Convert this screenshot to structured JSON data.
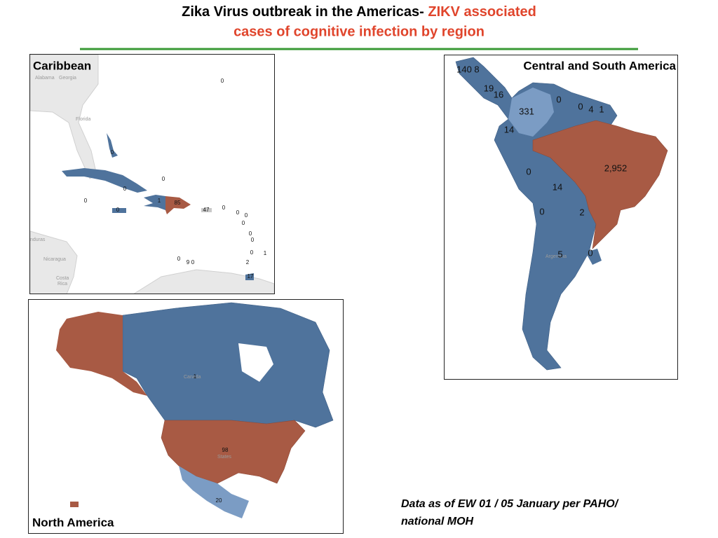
{
  "title": {
    "black": "Zika Virus outbreak in the Americas- ",
    "red_line1": "ZIKV associated",
    "red_line2": "cases of cognitive infection by region"
  },
  "panels": [
    {
      "name": "Caribbean",
      "basemap_labels": [
        "Alabama",
        "Georgia",
        "Florida",
        "nduras",
        "Nicaragua",
        "Costa",
        "Rica"
      ],
      "case_labels": [
        "0",
        "0",
        "0",
        "0",
        "0",
        "1",
        "85",
        "47",
        "0",
        "0",
        "0",
        "0",
        "0",
        "0",
        "0",
        "0",
        "1",
        "0",
        "9",
        "0",
        "2",
        "17"
      ]
    },
    {
      "name": "Central and South America",
      "basemap_labels": [
        "Argentina"
      ],
      "case_labels": [
        "140",
        "8",
        "19",
        "16",
        "331",
        "0",
        "0",
        "4",
        "1",
        "14",
        "2,952",
        "0",
        "14",
        "0",
        "2",
        "0",
        "5"
      ]
    },
    {
      "name": "North America",
      "basemap_labels": [
        "Canada",
        "States"
      ],
      "case_labels": [
        "1",
        "98",
        "20"
      ]
    }
  ],
  "footnote": [
    "Data as of EW 01 / 05 January per PAHO/",
    "national MOH"
  ]
}
